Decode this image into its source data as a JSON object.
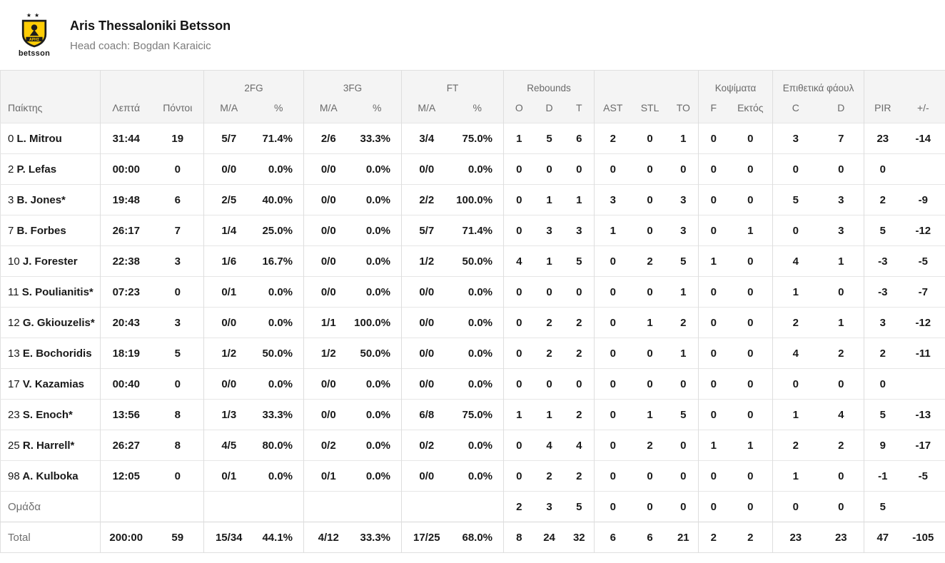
{
  "header": {
    "team_name": "Aris Thessaloniki Betsson",
    "coach_line": "Head coach: Bogdan Karaicic",
    "logo_brand": "betsson",
    "logo_shield_text": "ΑΡΗΣ",
    "logo_colors": {
      "shield_yellow": "#FFCD05",
      "dark": "#1d1d1b"
    }
  },
  "table": {
    "group_headers": [
      {
        "label": "",
        "span": 1
      },
      {
        "label": "",
        "span": 2
      },
      {
        "label": "2FG",
        "span": 2
      },
      {
        "label": "3FG",
        "span": 2
      },
      {
        "label": "FT",
        "span": 2
      },
      {
        "label": "Rebounds",
        "span": 3
      },
      {
        "label": "",
        "span": 3
      },
      {
        "label": "Κοψίματα",
        "span": 2
      },
      {
        "label": "Επιθετικά φάουλ",
        "span": 2
      },
      {
        "label": "",
        "span": 2
      }
    ],
    "column_labels": [
      "Παίκτης",
      "Λεπτά",
      "Πόντοι",
      "M/A",
      "%",
      "M/A",
      "%",
      "M/A",
      "%",
      "O",
      "D",
      "T",
      "AST",
      "STL",
      "TO",
      "F",
      "Εκτός",
      "C",
      "D",
      "PIR",
      "+/-"
    ],
    "rows": [
      {
        "num": "0",
        "name": "L. Mitrou",
        "cells": [
          "31:44",
          "19",
          "5/7",
          "71.4%",
          "2/6",
          "33.3%",
          "3/4",
          "75.0%",
          "1",
          "5",
          "6",
          "2",
          "0",
          "1",
          "0",
          "0",
          "3",
          "7",
          "23",
          "-14"
        ]
      },
      {
        "num": "2",
        "name": "P. Lefas",
        "cells": [
          "00:00",
          "0",
          "0/0",
          "0.0%",
          "0/0",
          "0.0%",
          "0/0",
          "0.0%",
          "0",
          "0",
          "0",
          "0",
          "0",
          "0",
          "0",
          "0",
          "0",
          "0",
          "0",
          ""
        ]
      },
      {
        "num": "3",
        "name": "B. Jones*",
        "cells": [
          "19:48",
          "6",
          "2/5",
          "40.0%",
          "0/0",
          "0.0%",
          "2/2",
          "100.0%",
          "0",
          "1",
          "1",
          "3",
          "0",
          "3",
          "0",
          "0",
          "5",
          "3",
          "2",
          "-9"
        ]
      },
      {
        "num": "7",
        "name": "B. Forbes",
        "cells": [
          "26:17",
          "7",
          "1/4",
          "25.0%",
          "0/0",
          "0.0%",
          "5/7",
          "71.4%",
          "0",
          "3",
          "3",
          "1",
          "0",
          "3",
          "0",
          "1",
          "0",
          "3",
          "5",
          "-12"
        ]
      },
      {
        "num": "10",
        "name": "J. Forester",
        "cells": [
          "22:38",
          "3",
          "1/6",
          "16.7%",
          "0/0",
          "0.0%",
          "1/2",
          "50.0%",
          "4",
          "1",
          "5",
          "0",
          "2",
          "5",
          "1",
          "0",
          "4",
          "1",
          "-3",
          "-5"
        ]
      },
      {
        "num": "11",
        "name": "S. Poulianitis*",
        "cells": [
          "07:23",
          "0",
          "0/1",
          "0.0%",
          "0/0",
          "0.0%",
          "0/0",
          "0.0%",
          "0",
          "0",
          "0",
          "0",
          "0",
          "1",
          "0",
          "0",
          "1",
          "0",
          "-3",
          "-7"
        ]
      },
      {
        "num": "12",
        "name": "G. Gkiouzelis*",
        "cells": [
          "20:43",
          "3",
          "0/0",
          "0.0%",
          "1/1",
          "100.0%",
          "0/0",
          "0.0%",
          "0",
          "2",
          "2",
          "0",
          "1",
          "2",
          "0",
          "0",
          "2",
          "1",
          "3",
          "-12"
        ]
      },
      {
        "num": "13",
        "name": "E. Bochoridis",
        "cells": [
          "18:19",
          "5",
          "1/2",
          "50.0%",
          "1/2",
          "50.0%",
          "0/0",
          "0.0%",
          "0",
          "2",
          "2",
          "0",
          "0",
          "1",
          "0",
          "0",
          "4",
          "2",
          "2",
          "-11"
        ]
      },
      {
        "num": "17",
        "name": "V. Kazamias",
        "cells": [
          "00:40",
          "0",
          "0/0",
          "0.0%",
          "0/0",
          "0.0%",
          "0/0",
          "0.0%",
          "0",
          "0",
          "0",
          "0",
          "0",
          "0",
          "0",
          "0",
          "0",
          "0",
          "0",
          ""
        ]
      },
      {
        "num": "23",
        "name": "S. Enoch*",
        "cells": [
          "13:56",
          "8",
          "1/3",
          "33.3%",
          "0/0",
          "0.0%",
          "6/8",
          "75.0%",
          "1",
          "1",
          "2",
          "0",
          "1",
          "5",
          "0",
          "0",
          "1",
          "4",
          "5",
          "-13"
        ]
      },
      {
        "num": "25",
        "name": "R. Harrell*",
        "cells": [
          "26:27",
          "8",
          "4/5",
          "80.0%",
          "0/2",
          "0.0%",
          "0/2",
          "0.0%",
          "0",
          "4",
          "4",
          "0",
          "2",
          "0",
          "1",
          "1",
          "2",
          "2",
          "9",
          "-17"
        ]
      },
      {
        "num": "98",
        "name": "A. Kulboka",
        "cells": [
          "12:05",
          "0",
          "0/1",
          "0.0%",
          "0/1",
          "0.0%",
          "0/0",
          "0.0%",
          "0",
          "2",
          "2",
          "0",
          "0",
          "0",
          "0",
          "0",
          "1",
          "0",
          "-1",
          "-5"
        ]
      }
    ],
    "team_row": {
      "label": "Ομάδα",
      "cells": [
        "",
        "",
        "",
        "",
        "",
        "",
        "",
        "",
        "2",
        "3",
        "5",
        "0",
        "0",
        "0",
        "0",
        "0",
        "0",
        "0",
        "5",
        ""
      ]
    },
    "total_row": {
      "label": "Total",
      "cells": [
        "200:00",
        "59",
        "15/34",
        "44.1%",
        "4/12",
        "33.3%",
        "17/25",
        "68.0%",
        "8",
        "24",
        "32",
        "6",
        "6",
        "21",
        "2",
        "2",
        "23",
        "23",
        "47",
        "-105"
      ]
    }
  }
}
